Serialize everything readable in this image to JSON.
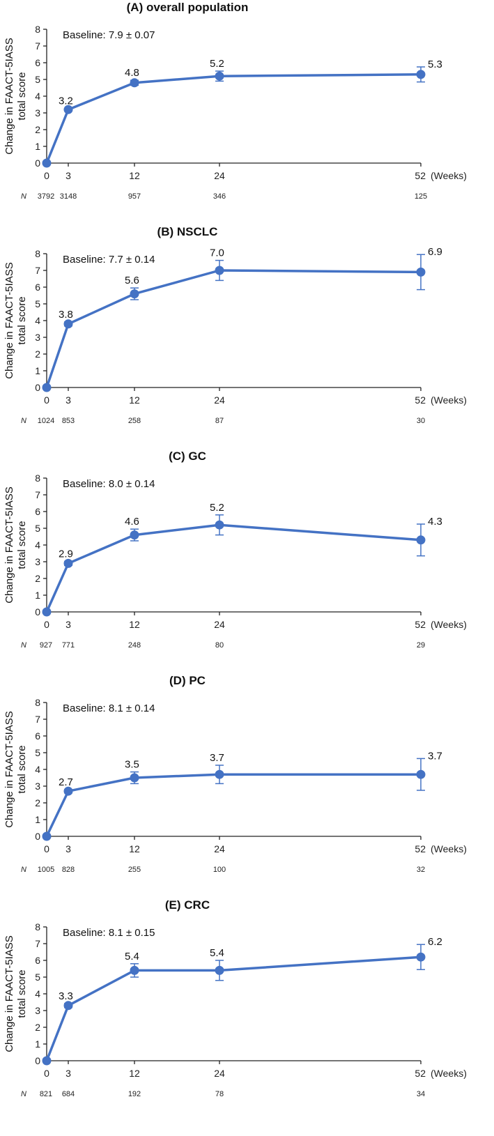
{
  "chart_data": [
    {
      "type": "line",
      "title": "(A) overall population",
      "ylabel_line1": "Change in FAACT-5IASS",
      "ylabel_line2": "total score",
      "baseline_text": "Baseline: 7.9 ± 0.07",
      "x": [
        0,
        3,
        12,
        24,
        52
      ],
      "x_ticks": [
        "0",
        "3",
        "12",
        "24",
        "52"
      ],
      "x_unit": "(Weeks)",
      "y": [
        0,
        3.2,
        4.8,
        5.2,
        5.3
      ],
      "labels": [
        "",
        "3.2",
        "4.8",
        "5.2",
        "5.3"
      ],
      "err": [
        0,
        0.07,
        0.15,
        0.3,
        0.45
      ],
      "n_symbol": "N",
      "n": [
        "3792",
        "3148",
        "957",
        "346",
        "125"
      ],
      "ylim": [
        0,
        8
      ],
      "y_ticks": [
        "0",
        "1",
        "2",
        "3",
        "4",
        "5",
        "6",
        "7",
        "8"
      ],
      "color": "#4472C4"
    },
    {
      "type": "line",
      "title": "(B) NSCLC",
      "ylabel_line1": "Change in FAACT-5IASS",
      "ylabel_line2": "total score",
      "baseline_text": "Baseline: 7.7 ± 0.14",
      "x": [
        0,
        3,
        12,
        24,
        52
      ],
      "x_ticks": [
        "0",
        "3",
        "12",
        "24",
        "52"
      ],
      "x_unit": "(Weeks)",
      "y": [
        0,
        3.8,
        5.6,
        7.0,
        6.9
      ],
      "labels": [
        "",
        "3.8",
        "5.6",
        "7.0",
        "6.9"
      ],
      "err": [
        0,
        0.12,
        0.35,
        0.6,
        1.05
      ],
      "n_symbol": "N",
      "n": [
        "1024",
        "853",
        "258",
        "87",
        "30"
      ],
      "ylim": [
        0,
        8
      ],
      "y_ticks": [
        "0",
        "1",
        "2",
        "3",
        "4",
        "5",
        "6",
        "7",
        "8"
      ],
      "color": "#4472C4"
    },
    {
      "type": "line",
      "title": "(C) GC",
      "ylabel_line1": "Change in FAACT-5IASS",
      "ylabel_line2": "total score",
      "baseline_text": "Baseline: 8.0 ± 0.14",
      "x": [
        0,
        3,
        12,
        24,
        52
      ],
      "x_ticks": [
        "0",
        "3",
        "12",
        "24",
        "52"
      ],
      "x_unit": "(Weeks)",
      "y": [
        0,
        2.9,
        4.6,
        5.2,
        4.3
      ],
      "labels": [
        "",
        "2.9",
        "4.6",
        "5.2",
        "4.3"
      ],
      "err": [
        0,
        0.12,
        0.35,
        0.6,
        0.95
      ],
      "n_symbol": "N",
      "n": [
        "927",
        "771",
        "248",
        "80",
        "29"
      ],
      "ylim": [
        0,
        8
      ],
      "y_ticks": [
        "0",
        "1",
        "2",
        "3",
        "4",
        "5",
        "6",
        "7",
        "8"
      ],
      "color": "#4472C4"
    },
    {
      "type": "line",
      "title": "(D) PC",
      "ylabel_line1": "Change in FAACT-5IASS",
      "ylabel_line2": "total score",
      "baseline_text": "Baseline: 8.1 ± 0.14",
      "x": [
        0,
        3,
        12,
        24,
        52
      ],
      "x_ticks": [
        "0",
        "3",
        "12",
        "24",
        "52"
      ],
      "x_unit": "(Weeks)",
      "y": [
        0,
        2.7,
        3.5,
        3.7,
        3.7
      ],
      "labels": [
        "",
        "2.7",
        "3.5",
        "3.7",
        "3.7"
      ],
      "err": [
        0,
        0.1,
        0.35,
        0.55,
        0.95
      ],
      "n_symbol": "N",
      "n": [
        "1005",
        "828",
        "255",
        "100",
        "32"
      ],
      "ylim": [
        0,
        8
      ],
      "y_ticks": [
        "0",
        "1",
        "2",
        "3",
        "4",
        "5",
        "6",
        "7",
        "8"
      ],
      "color": "#4472C4"
    },
    {
      "type": "line",
      "title": "(E) CRC",
      "ylabel_line1": "Change in FAACT-5IASS",
      "ylabel_line2": "total score",
      "baseline_text": "Baseline: 8.1 ± 0.15",
      "x": [
        0,
        3,
        12,
        24,
        52
      ],
      "x_ticks": [
        "0",
        "3",
        "12",
        "24",
        "52"
      ],
      "x_unit": "(Weeks)",
      "y": [
        0,
        3.3,
        5.4,
        5.4,
        6.2
      ],
      "labels": [
        "",
        "3.3",
        "5.4",
        "5.4",
        "6.2"
      ],
      "err": [
        0,
        0.12,
        0.4,
        0.6,
        0.75
      ],
      "n_symbol": "N",
      "n": [
        "821",
        "684",
        "192",
        "78",
        "34"
      ],
      "ylim": [
        0,
        8
      ],
      "y_ticks": [
        "0",
        "1",
        "2",
        "3",
        "4",
        "5",
        "6",
        "7",
        "8"
      ],
      "color": "#4472C4"
    }
  ]
}
